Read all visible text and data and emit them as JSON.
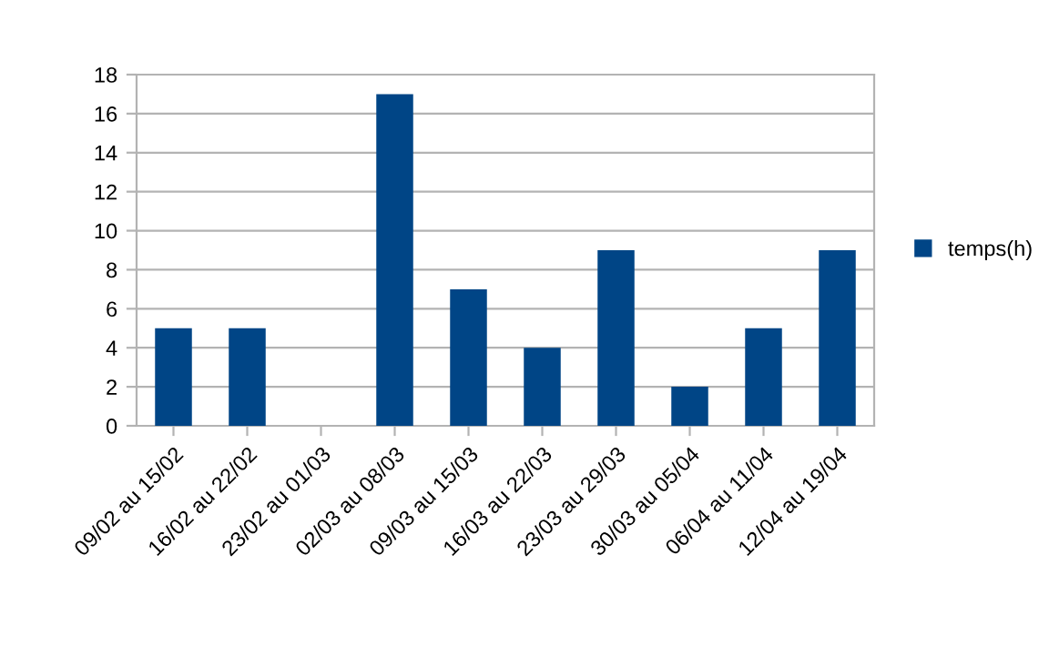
{
  "chart_data": {
    "type": "bar",
    "categories": [
      "09/02 au 15/02",
      "16/02 au 22/02",
      "23/02 au 01/03",
      "02/03 au 08/03",
      "09/03 au 15/03",
      "16/03 au 22/03",
      "23/03 au 29/03",
      "30/03 au 05/04",
      "06/04 au 11/04",
      "12/04 au 19/04"
    ],
    "series": [
      {
        "name": "temps(h)",
        "color": "#004586",
        "values": [
          5,
          5,
          0,
          17,
          7,
          4,
          9,
          2,
          5,
          9
        ]
      }
    ],
    "ylim": [
      0,
      18
    ],
    "yticks": [
      0,
      2,
      4,
      6,
      8,
      10,
      12,
      14,
      16,
      18
    ],
    "grid": "y",
    "legend": "right"
  }
}
